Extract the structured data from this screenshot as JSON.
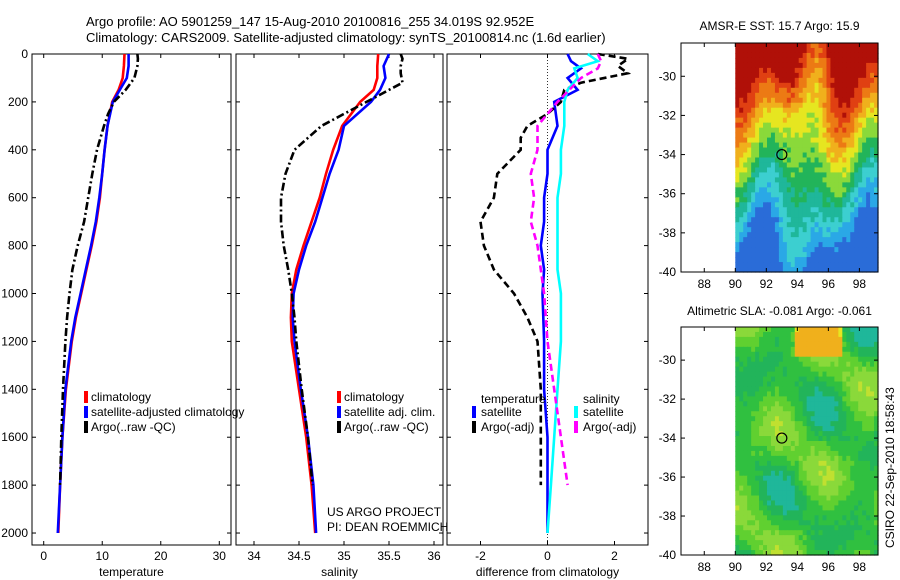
{
  "header": {
    "line1": "Argo profile: AO 5901259_147 15-Aug-2010 20100816_255 34.019S 92.952E",
    "line2": "Climatology: CARS2009. Satellite-adjusted climatology: synTS_20100814.nc (1.6d earlier)"
  },
  "credit": {
    "line1": "US ARGO PROJECT",
    "line2": "PI: DEAN ROEMMICH"
  },
  "stamp": "CSIRO 22-Sep-2010 18:58:43",
  "colors": {
    "red": "#ff0000",
    "blue": "#0000ff",
    "black": "#000000",
    "cyan": "#00ffff",
    "magenta": "#ff00ff"
  },
  "chart_data": [
    {
      "type": "line",
      "xlabel": "temperature",
      "xlim": [
        -2,
        32
      ],
      "xticks": [
        0,
        10,
        20,
        30
      ],
      "ylim": [
        0,
        2050
      ],
      "yticks": [
        0,
        200,
        400,
        600,
        800,
        1000,
        1200,
        1400,
        1600,
        1800,
        2000
      ],
      "legend": [
        "climatology",
        "satellite-adjusted climatology",
        "Argo(..raw -QC)"
      ],
      "series": [
        {
          "name": "climatology",
          "color": "#ff0000",
          "style": "solid",
          "depth": [
            0,
            50,
            100,
            150,
            200,
            300,
            400,
            500,
            600,
            700,
            800,
            900,
            1000,
            1100,
            1200,
            1400,
            1600,
            1800,
            2000
          ],
          "values": [
            13.8,
            13.7,
            13.5,
            12.8,
            11.7,
            10.9,
            10.4,
            10.0,
            9.6,
            9.0,
            8.2,
            7.3,
            6.4,
            5.5,
            4.8,
            3.8,
            3.2,
            2.8,
            2.5
          ]
        },
        {
          "name": "satellite-adjusted climatology",
          "color": "#0000ff",
          "style": "solid",
          "depth": [
            0,
            50,
            100,
            150,
            200,
            300,
            400,
            500,
            600,
            700,
            800,
            900,
            1000,
            1100,
            1200,
            1400,
            1600,
            1800,
            2000
          ],
          "values": [
            14.5,
            14.5,
            14.2,
            13.0,
            11.8,
            10.9,
            10.4,
            10.0,
            9.5,
            8.9,
            8.1,
            7.2,
            6.3,
            5.4,
            4.7,
            3.7,
            3.2,
            2.8,
            2.4
          ]
        },
        {
          "name": "Argo(..raw -QC)",
          "color": "#000000",
          "style": "dashdot",
          "depth": [
            0,
            20,
            50,
            100,
            150,
            200,
            250,
            300,
            400,
            500,
            600,
            700,
            800,
            900,
            1000,
            1100,
            1200,
            1400,
            1600,
            1800
          ],
          "values": [
            16.0,
            16.1,
            16.0,
            15.5,
            14.0,
            12.0,
            11.0,
            10.3,
            9.1,
            8.3,
            7.6,
            6.9,
            5.8,
            4.9,
            4.4,
            4.0,
            3.7,
            3.3,
            3.0,
            2.8
          ]
        }
      ]
    },
    {
      "type": "line",
      "xlabel": "salinity",
      "xlim": [
        33.8,
        36.1
      ],
      "xticks": [
        34,
        34.5,
        35,
        35.5,
        36
      ],
      "ylim": [
        0,
        2050
      ],
      "legend": [
        "climatology",
        "satellite adj. clim.",
        "Argo(..raw -QC)"
      ],
      "series": [
        {
          "name": "climatology",
          "color": "#ff0000",
          "style": "solid",
          "depth": [
            0,
            50,
            100,
            150,
            200,
            300,
            400,
            500,
            600,
            700,
            800,
            900,
            1000,
            1100,
            1200,
            1400,
            1600,
            1800,
            2000
          ],
          "values": [
            35.38,
            35.37,
            35.37,
            35.33,
            35.18,
            34.98,
            34.88,
            34.8,
            34.73,
            34.64,
            34.55,
            34.47,
            34.42,
            34.41,
            34.42,
            34.5,
            34.58,
            34.64,
            34.68
          ]
        },
        {
          "name": "satellite adj. clim.",
          "color": "#0000ff",
          "style": "solid",
          "depth": [
            0,
            50,
            100,
            150,
            200,
            300,
            400,
            500,
            600,
            700,
            800,
            900,
            1000,
            1100,
            1200,
            1400,
            1600,
            1800,
            2000
          ],
          "values": [
            35.5,
            35.44,
            35.46,
            35.4,
            35.3,
            35.0,
            34.94,
            34.84,
            34.76,
            34.68,
            34.58,
            34.5,
            34.44,
            34.43,
            34.45,
            34.52,
            34.6,
            34.66,
            34.69
          ]
        },
        {
          "name": "Argo(..raw -QC)",
          "color": "#000000",
          "style": "dashdot",
          "depth": [
            0,
            20,
            50,
            80,
            120,
            150,
            200,
            250,
            300,
            350,
            400,
            500,
            600,
            700,
            800,
            900,
            1000,
            1100,
            1200,
            1400,
            1600,
            1800
          ],
          "values": [
            35.63,
            35.65,
            35.63,
            35.63,
            35.65,
            35.5,
            35.25,
            35.0,
            34.75,
            34.6,
            34.45,
            34.35,
            34.3,
            34.3,
            34.33,
            34.38,
            34.42,
            34.45,
            34.47,
            34.53,
            34.6,
            34.65
          ]
        }
      ]
    },
    {
      "type": "line",
      "xlabel": "difference from climatology",
      "xlim": [
        -3,
        3
      ],
      "xticks": [
        -2,
        0,
        2
      ],
      "ylim": [
        0,
        2050
      ],
      "legend_titles": [
        "temperature",
        "salinity"
      ],
      "legend": [
        "satellite",
        "Argo(-adj)",
        "satellite",
        "Argo(-adj)"
      ],
      "series": [
        {
          "name": "satellite",
          "group": "temperature",
          "color": "#0000ff",
          "style": "solid",
          "depth": [
            0,
            30,
            60,
            100,
            150,
            200,
            300,
            400,
            500,
            600,
            700,
            800,
            900,
            1000,
            1200,
            1400,
            1600,
            1800,
            2000
          ],
          "values": [
            0.6,
            0.7,
            1.0,
            0.6,
            0.9,
            0.2,
            0.3,
            0.0,
            0.0,
            -0.1,
            -0.1,
            -0.2,
            -0.1,
            -0.15,
            -0.1,
            -0.1,
            0.0,
            0.0,
            0.0
          ]
        },
        {
          "name": "Argo(-adj)",
          "group": "temperature",
          "color": "#000000",
          "style": "dashed",
          "depth": [
            0,
            20,
            50,
            80,
            120,
            150,
            200,
            250,
            300,
            350,
            400,
            500,
            600,
            700,
            800,
            900,
            1000,
            1100,
            1200,
            1400,
            1600,
            1800
          ],
          "values": [
            1.5,
            2.4,
            2.1,
            2.4,
            1.0,
            0.5,
            0.4,
            0.0,
            -0.6,
            -0.8,
            -0.8,
            -1.5,
            -1.6,
            -2.0,
            -1.9,
            -1.6,
            -1.0,
            -0.6,
            -0.3,
            -0.2,
            -0.2,
            -0.2
          ]
        },
        {
          "name": "satellite",
          "group": "salinity",
          "color": "#00ffff",
          "style": "solid",
          "depth": [
            0,
            30,
            60,
            100,
            150,
            200,
            300,
            400,
            500,
            600,
            700,
            800,
            900,
            1000,
            1200,
            1400,
            1600,
            1800,
            2000
          ],
          "values": [
            1.2,
            1.5,
            0.8,
            0.9,
            0.6,
            0.5,
            0.5,
            0.4,
            0.4,
            0.3,
            0.3,
            0.3,
            0.3,
            0.4,
            0.4,
            0.3,
            0.2,
            0.1,
            0.0
          ]
        },
        {
          "name": "Argo(-adj)",
          "group": "salinity",
          "color": "#ff00ff",
          "style": "dashed",
          "depth": [
            0,
            30,
            60,
            100,
            200,
            300,
            400,
            500,
            600,
            700,
            800,
            900,
            1000,
            1200,
            1400,
            1600,
            1800
          ],
          "values": [
            1.5,
            1.6,
            1.5,
            1.0,
            0.3,
            -0.3,
            -0.3,
            -0.5,
            -0.4,
            -0.5,
            -0.3,
            -0.2,
            -0.1,
            0.0,
            0.2,
            0.4,
            0.6
          ]
        }
      ]
    },
    {
      "type": "heatmap",
      "title": "AMSR-E SST: 15.7  Argo: 15.9",
      "xticks": [
        88,
        90,
        92,
        94,
        96,
        98
      ],
      "yticks": [
        -30,
        -32,
        -34,
        -36,
        -38,
        -40
      ],
      "xlim": [
        86.5,
        99.2
      ],
      "ylim": [
        -40,
        -28.3
      ],
      "data_xlim": [
        90,
        99.2
      ],
      "marker": {
        "x": 93,
        "y": -34
      },
      "palette": [
        "#2a6cd8",
        "#2aa8e6",
        "#3ccfd0",
        "#1fb79a",
        "#22b45a",
        "#8ad93a",
        "#e6e620",
        "#f0b01c",
        "#ec7a14",
        "#e04012",
        "#b01008"
      ]
    },
    {
      "type": "heatmap",
      "title": "Altimetric SLA: -0.081  Argo: -0.061",
      "xticks": [
        88,
        90,
        92,
        94,
        96,
        98
      ],
      "yticks": [
        -30,
        -32,
        -34,
        -36,
        -38,
        -40
      ],
      "xlim": [
        86.5,
        99.2
      ],
      "ylim": [
        -40,
        -28.3
      ],
      "data_xlim": [
        90,
        99.2
      ],
      "marker": {
        "x": 93,
        "y": -34
      },
      "palette": [
        "#1fb79a",
        "#22b45a",
        "#30c040",
        "#60d030",
        "#8ad93a",
        "#c0e030",
        "#e6e620",
        "#f0b01c"
      ]
    }
  ]
}
